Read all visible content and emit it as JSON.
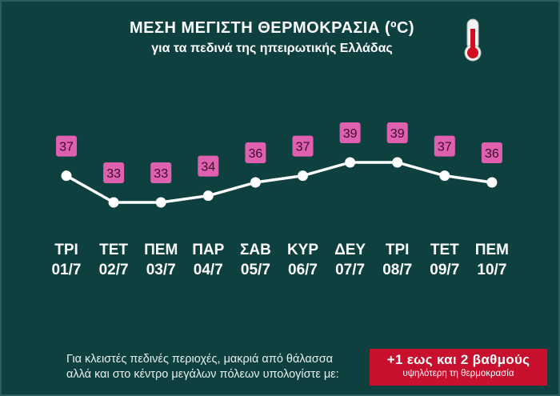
{
  "header": {
    "title": "ΜΕΣΗ ΜΕΓΙΣΤΗ ΘΕΡΜΟΚΡΑΣΙΑ (ºC)",
    "subtitle": "για τα πεδινά της ηπειρωτικής Ελλάδας",
    "icon": "thermometer-icon"
  },
  "chart_data": {
    "type": "line",
    "days": [
      "ΤΡΙ",
      "ΤΕΤ",
      "ΠΕΜ",
      "ΠΑΡ",
      "ΣΑΒ",
      "ΚΥΡ",
      "ΔΕΥ",
      "ΤΡΙ",
      "ΤΕΤ",
      "ΠΕΜ"
    ],
    "dates": [
      "01/7",
      "02/7",
      "03/7",
      "04/7",
      "05/7",
      "06/7",
      "07/7",
      "08/7",
      "09/7",
      "10/7"
    ],
    "values": [
      37,
      33,
      33,
      34,
      36,
      37,
      39,
      39,
      37,
      36
    ],
    "labels": [
      "37",
      "33",
      "33",
      "34",
      "36",
      "37",
      "39",
      "39",
      "37",
      "36"
    ],
    "line_color": "#ffffff",
    "label_color": "#e060b0"
  },
  "footer": {
    "note_line1": "Για κλειστές πεδινές περιοχές, μακριά από θάλασσα",
    "note_line2": "αλλά και στο κέντρο μεγάλων πόλεων υπολογίστε με:",
    "box_main": "+1 εως και 2 βαθμούς",
    "box_sub": "υψηλότερη τη θερμοκρασία",
    "box_color": "#c8102e"
  }
}
